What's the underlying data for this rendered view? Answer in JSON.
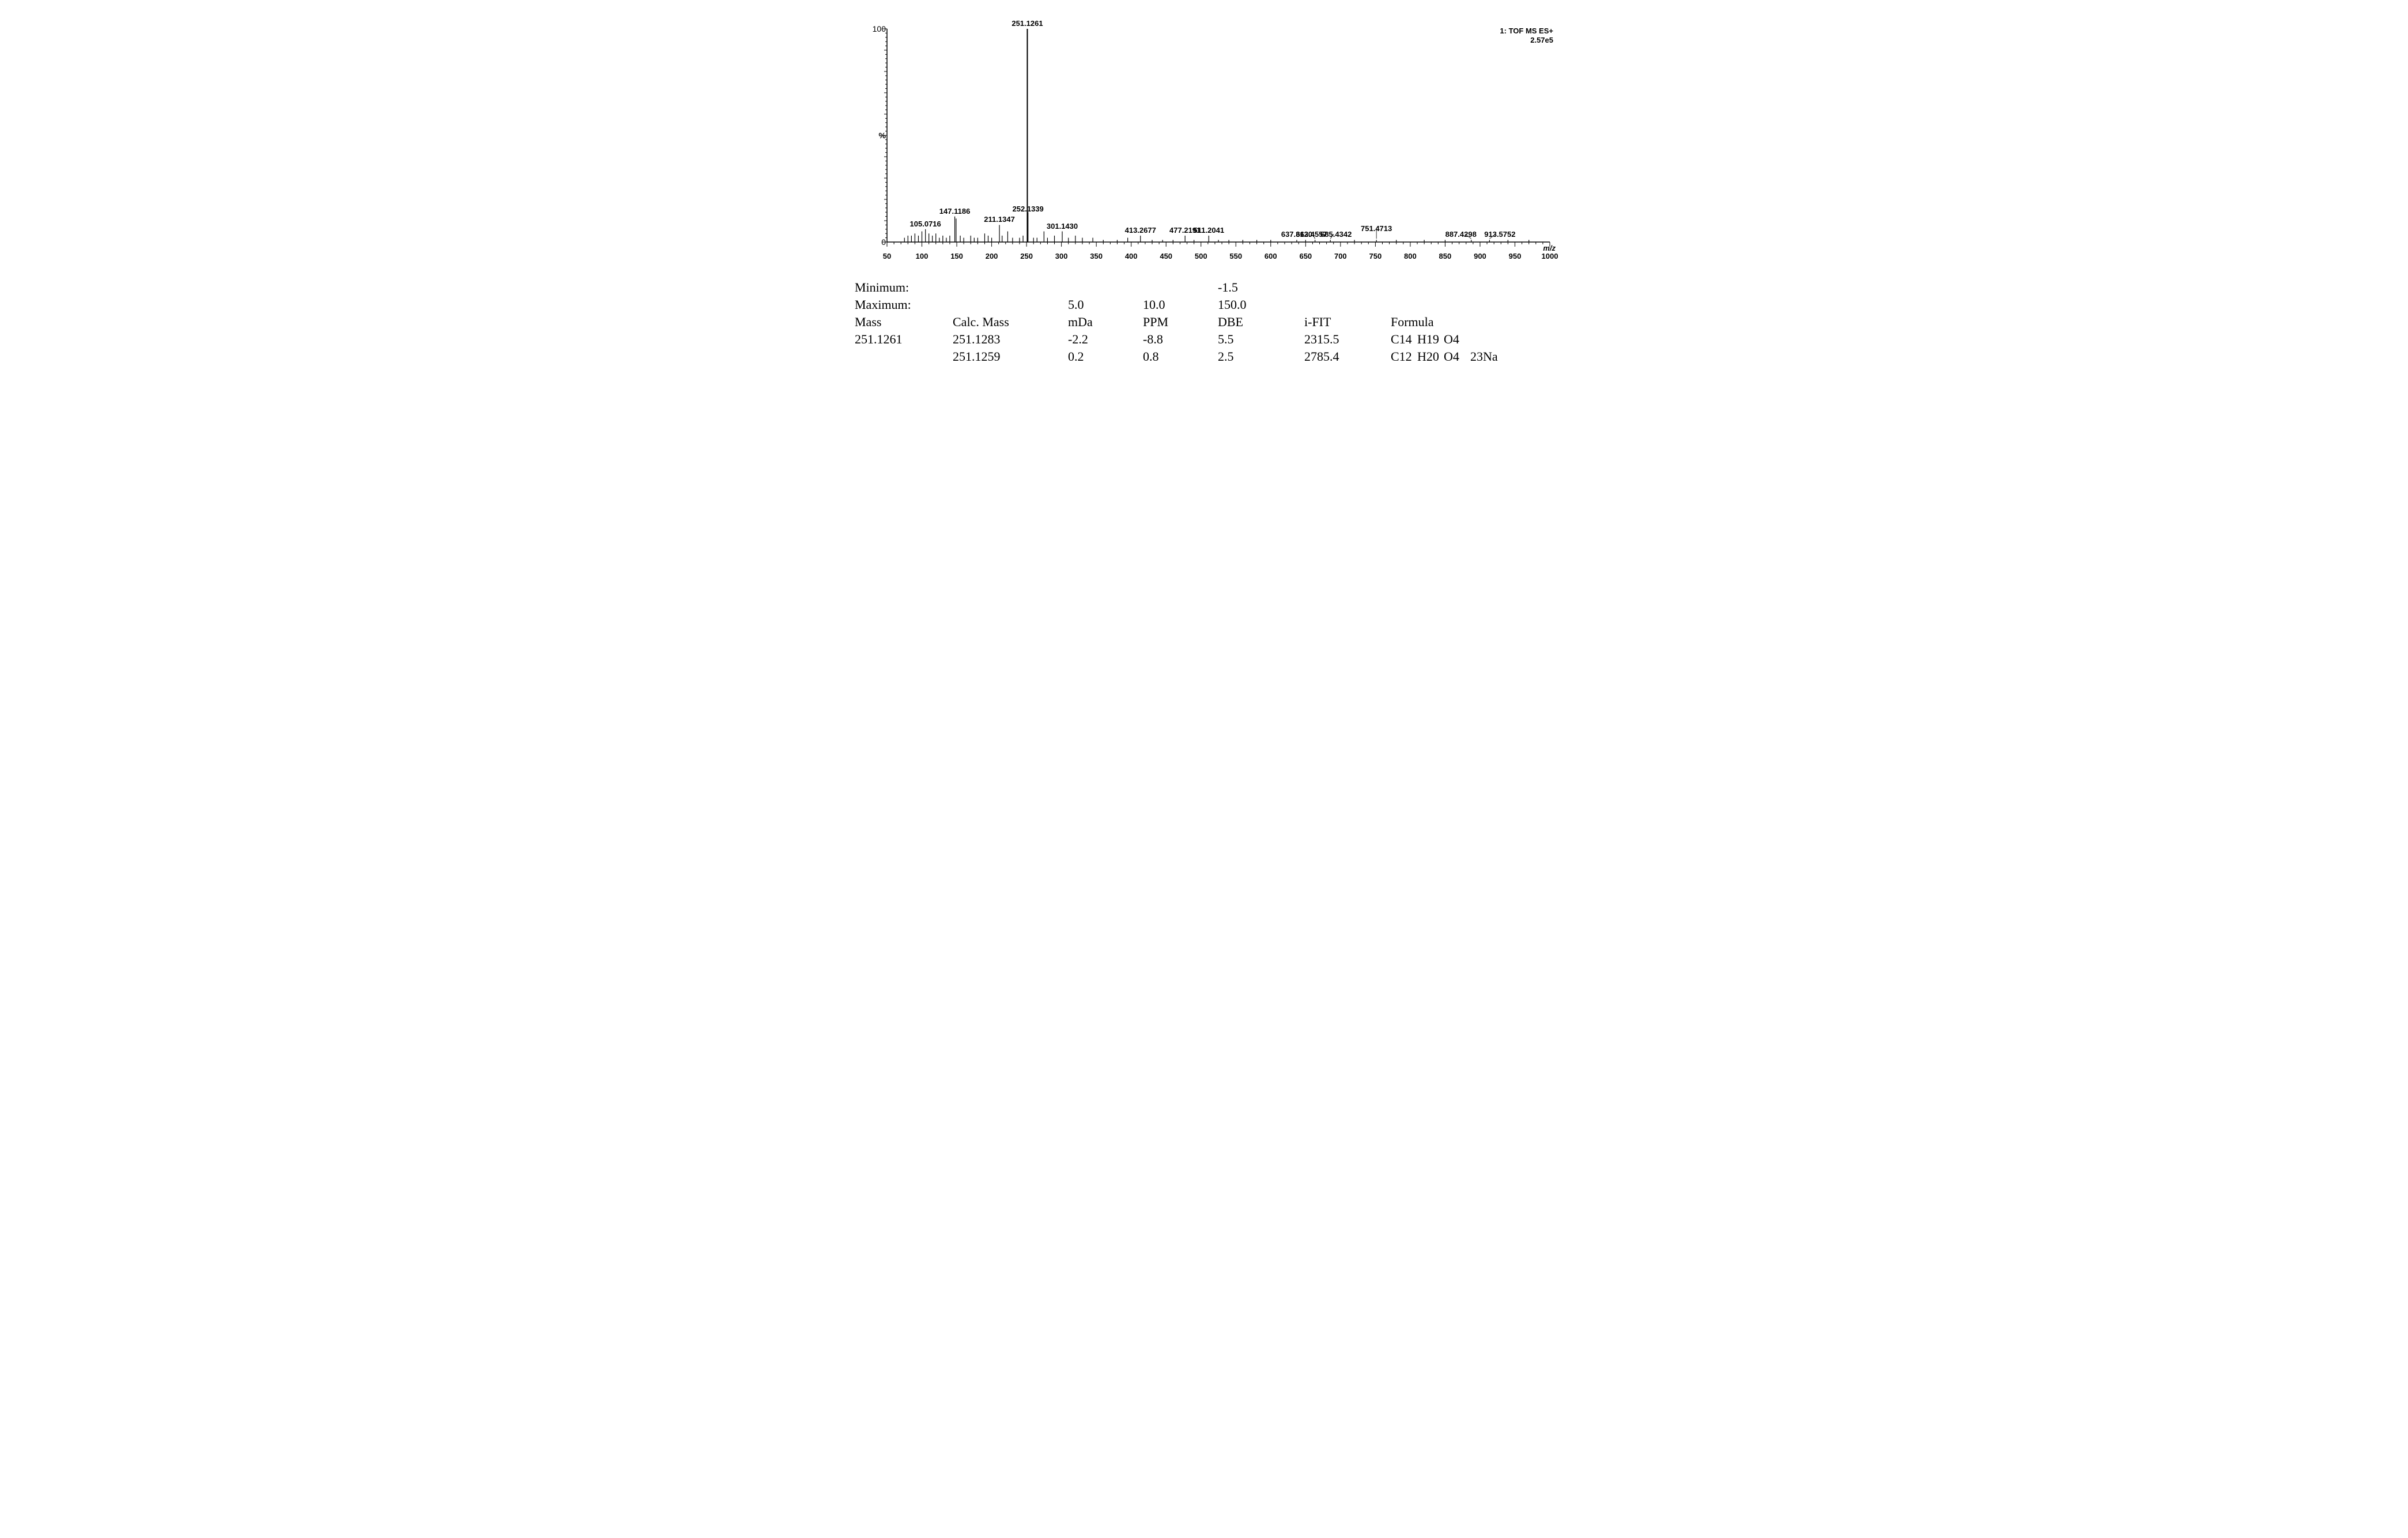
{
  "chart": {
    "type": "mass-spectrum",
    "background_color": "#ffffff",
    "axis_color": "#000000",
    "peak_color": "#000000",
    "label_fontsize_pt": 10,
    "xlim": [
      50,
      1000
    ],
    "ylim": [
      0,
      100
    ],
    "x_tick_step": 50,
    "x_minor_step": 10,
    "y_ticks": [
      0,
      50,
      100
    ],
    "y_tick_labels": [
      "0",
      "%",
      "100"
    ],
    "x_axis_title": "m/z",
    "corner_lines": [
      "1: TOF MS ES+",
      "2.57e5"
    ],
    "peaks": [
      {
        "mz": 75,
        "intensity": 2
      },
      {
        "mz": 80,
        "intensity": 3
      },
      {
        "mz": 85,
        "intensity": 3
      },
      {
        "mz": 90,
        "intensity": 4
      },
      {
        "mz": 95,
        "intensity": 3
      },
      {
        "mz": 100,
        "intensity": 5
      },
      {
        "mz": 105.0716,
        "intensity": 6,
        "label": "105.0716"
      },
      {
        "mz": 110,
        "intensity": 4
      },
      {
        "mz": 115,
        "intensity": 3
      },
      {
        "mz": 120,
        "intensity": 4
      },
      {
        "mz": 125,
        "intensity": 2
      },
      {
        "mz": 130,
        "intensity": 3
      },
      {
        "mz": 135,
        "intensity": 2
      },
      {
        "mz": 140,
        "intensity": 3
      },
      {
        "mz": 147.1186,
        "intensity": 12,
        "label": "147.1186"
      },
      {
        "mz": 149,
        "intensity": 11
      },
      {
        "mz": 155,
        "intensity": 3
      },
      {
        "mz": 160,
        "intensity": 2
      },
      {
        "mz": 170,
        "intensity": 3
      },
      {
        "mz": 175,
        "intensity": 2
      },
      {
        "mz": 180,
        "intensity": 2
      },
      {
        "mz": 190,
        "intensity": 4
      },
      {
        "mz": 195,
        "intensity": 3
      },
      {
        "mz": 200,
        "intensity": 2
      },
      {
        "mz": 211.1347,
        "intensity": 8,
        "label": "211.1347"
      },
      {
        "mz": 215,
        "intensity": 3
      },
      {
        "mz": 223,
        "intensity": 5
      },
      {
        "mz": 230,
        "intensity": 2
      },
      {
        "mz": 240,
        "intensity": 2
      },
      {
        "mz": 245,
        "intensity": 3
      },
      {
        "mz": 251.1261,
        "intensity": 100,
        "label": "251.1261"
      },
      {
        "mz": 252.1339,
        "intensity": 14,
        "label": "252.1339",
        "label_dy": 4
      },
      {
        "mz": 260,
        "intensity": 2
      },
      {
        "mz": 265,
        "intensity": 2
      },
      {
        "mz": 275,
        "intensity": 5
      },
      {
        "mz": 280,
        "intensity": 2
      },
      {
        "mz": 290,
        "intensity": 3
      },
      {
        "mz": 301.143,
        "intensity": 5,
        "label": "301.1430"
      },
      {
        "mz": 310,
        "intensity": 2
      },
      {
        "mz": 320,
        "intensity": 3
      },
      {
        "mz": 330,
        "intensity": 2
      },
      {
        "mz": 345,
        "intensity": 2
      },
      {
        "mz": 360,
        "intensity": 1
      },
      {
        "mz": 380,
        "intensity": 1
      },
      {
        "mz": 395,
        "intensity": 2
      },
      {
        "mz": 413.2677,
        "intensity": 3,
        "label": "413.2677"
      },
      {
        "mz": 430,
        "intensity": 1
      },
      {
        "mz": 445,
        "intensity": 1
      },
      {
        "mz": 460,
        "intensity": 1
      },
      {
        "mz": 477.2191,
        "intensity": 3,
        "label": "477.2191"
      },
      {
        "mz": 490,
        "intensity": 1
      },
      {
        "mz": 511.2041,
        "intensity": 3,
        "label": "511.2041"
      },
      {
        "mz": 525,
        "intensity": 1
      },
      {
        "mz": 540,
        "intensity": 1
      },
      {
        "mz": 560,
        "intensity": 1
      },
      {
        "mz": 580,
        "intensity": 1
      },
      {
        "mz": 600,
        "intensity": 1
      },
      {
        "mz": 637.312,
        "intensity": 1,
        "label": "637.3120"
      },
      {
        "mz": 650,
        "intensity": 1
      },
      {
        "mz": 663.4557,
        "intensity": 1,
        "label": "663.4557",
        "label_dx": -6
      },
      {
        "mz": 685.4342,
        "intensity": 1,
        "label": "685.4342",
        "label_dx": 10
      },
      {
        "mz": 720,
        "intensity": 1
      },
      {
        "mz": 751.4713,
        "intensity": 1,
        "label": "751.4713",
        "label_dy": -10
      },
      {
        "mz": 780,
        "intensity": 1
      },
      {
        "mz": 820,
        "intensity": 1
      },
      {
        "mz": 850,
        "intensity": 1
      },
      {
        "mz": 887.4298,
        "intensity": 1,
        "label": "887.4298",
        "label_dx": -18
      },
      {
        "mz": 913.5752,
        "intensity": 1,
        "label": "913.5752",
        "label_dx": 18
      },
      {
        "mz": 940,
        "intensity": 1
      },
      {
        "mz": 970,
        "intensity": 1
      }
    ]
  },
  "table": {
    "minimum_label": "Minimum:",
    "maximum_label": "Maximum:",
    "min_dbe": "-1.5",
    "max_mda": "5.0",
    "max_ppm": "10.0",
    "max_dbe": "150.0",
    "headers": {
      "mass": "Mass",
      "calc_mass": "Calc. Mass",
      "mda": "mDa",
      "ppm": "PPM",
      "dbe": "DBE",
      "ifit": "i-FIT",
      "formula": "Formula"
    },
    "rows": [
      {
        "mass": "251.1261",
        "calc_mass": "251.1283",
        "mda": "-2.2",
        "ppm": "-8.8",
        "dbe": "5.5",
        "ifit": "2315.5",
        "formula": [
          "C14",
          "H19",
          "O4",
          ""
        ]
      },
      {
        "mass": "",
        "calc_mass": "251.1259",
        "mda": "0.2",
        "ppm": "0.8",
        "dbe": "2.5",
        "ifit": "2785.4",
        "formula": [
          "C12",
          "H20",
          "O4",
          "23Na"
        ]
      }
    ]
  }
}
